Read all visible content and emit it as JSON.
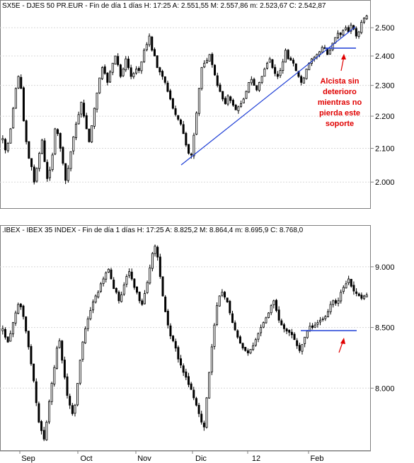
{
  "chart_data": [
    {
      "type": "candlestick",
      "header": "SX5E - DJES 50 PR.EUR - Fin de día 1 días  H: 17:25  A: 2.551,55  M: 2.557,86  m: 2.523,67  C: 2.542,87",
      "y_ticks": [
        "2.500",
        "2.400",
        "2.300",
        "2.200",
        "2.100",
        "2.000"
      ],
      "ylim": [
        1930,
        2560
      ],
      "y_scale": "log",
      "grid": true,
      "trendline": {
        "from": [
          "Nov-end",
          2070
        ],
        "to": [
          "Feb-end",
          2520
        ]
      },
      "support_level": 2455,
      "annotation": [
        "Alcista sin",
        "deterioro",
        "mientras no",
        "pierda este",
        "soporte"
      ],
      "closes": [
        2130,
        2095,
        2115,
        2160,
        2225,
        2290,
        2330,
        2290,
        2185,
        2120,
        2070,
        2045,
        2000,
        2040,
        2085,
        2125,
        2060,
        2010,
        2035,
        2080,
        2160,
        2145,
        2100,
        2055,
        2005,
        2040,
        2090,
        2135,
        2175,
        2205,
        2245,
        2200,
        2160,
        2120,
        2170,
        2225,
        2275,
        2325,
        2360,
        2340,
        2310,
        2345,
        2375,
        2400,
        2370,
        2330,
        2355,
        2390,
        2360,
        2330,
        2340,
        2355,
        2350,
        2380,
        2420,
        2440,
        2470,
        2420,
        2400,
        2360,
        2345,
        2330,
        2310,
        2280,
        2255,
        2225,
        2205,
        2190,
        2175,
        2145,
        2110,
        2085,
        2080,
        2140,
        2210,
        2290,
        2360,
        2375,
        2385,
        2405,
        2370,
        2335,
        2300,
        2280,
        2255,
        2240,
        2265,
        2250,
        2235,
        2220,
        2230,
        2240,
        2255,
        2280,
        2310,
        2320,
        2300,
        2285,
        2310,
        2330,
        2355,
        2375,
        2390,
        2360,
        2340,
        2330,
        2350,
        2380,
        2420,
        2390,
        2385,
        2375,
        2350,
        2330,
        2310,
        2325,
        2355,
        2375,
        2390,
        2395,
        2405,
        2415,
        2430,
        2425,
        2405,
        2420,
        2445,
        2465,
        2480,
        2475,
        2490,
        2500,
        2485,
        2510,
        2495,
        2470,
        2485,
        2520,
        2535,
        2542.87
      ]
    },
    {
      "type": "candlestick",
      "header": ".IBEX - IBEX 35 INDEX - Fin de día 1 días  H: 17:25  A: 8.825,2  M: 8.864,4  m: 8.695,9  C: 8.768,0",
      "y_ticks": [
        "9.000",
        "8.500",
        "8.000"
      ],
      "ylim": [
        7500,
        9250
      ],
      "grid": true,
      "support_level": 8460,
      "closes": [
        8490,
        8420,
        8380,
        8450,
        8540,
        8620,
        8690,
        8670,
        8590,
        8470,
        8340,
        8200,
        8060,
        7880,
        7720,
        7650,
        7580,
        7720,
        7890,
        8040,
        8170,
        8330,
        8390,
        8230,
        8090,
        7940,
        7860,
        7790,
        7860,
        8040,
        8230,
        8380,
        8490,
        8570,
        8640,
        8710,
        8760,
        8790,
        8860,
        8900,
        8950,
        8980,
        8900,
        8820,
        8790,
        8720,
        8770,
        8850,
        8920,
        8960,
        8900,
        8830,
        8790,
        8720,
        8690,
        8780,
        8870,
        8990,
        9110,
        9170,
        9080,
        8920,
        8760,
        8630,
        8520,
        8430,
        8390,
        8330,
        8240,
        8190,
        8130,
        8090,
        8030,
        7990,
        7920,
        7860,
        7790,
        7720,
        7680,
        7920,
        8130,
        8340,
        8520,
        8680,
        8760,
        8790,
        8750,
        8710,
        8620,
        8540,
        8480,
        8420,
        8370,
        8330,
        8310,
        8290,
        8320,
        8350,
        8400,
        8450,
        8500,
        8540,
        8580,
        8620,
        8680,
        8720,
        8640,
        8560,
        8520,
        8490,
        8470,
        8460,
        8440,
        8400,
        8350,
        8310,
        8360,
        8420,
        8470,
        8510,
        8500,
        8520,
        8540,
        8560,
        8570,
        8590,
        8630,
        8690,
        8720,
        8700,
        8720,
        8790,
        8830,
        8860,
        8900,
        8840,
        8800,
        8780,
        8760,
        8740,
        8760,
        8768
      ]
    }
  ],
  "x_labels": [
    "Sep",
    "Oct",
    "Nov",
    "Dic",
    "12",
    "Feb"
  ]
}
